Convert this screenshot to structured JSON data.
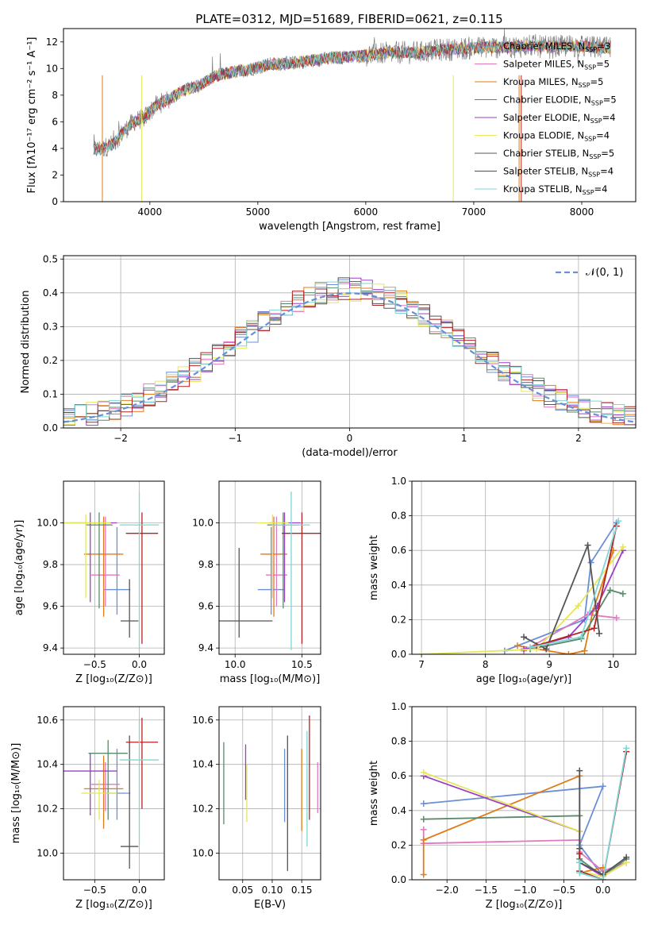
{
  "title": "PLATE=0312, MJD=51689, FIBERID=0621, z=0.115",
  "colors": {
    "Chabrier MILES": "#6a8fd8",
    "Salpeter MILES": "#e377c2",
    "Kroupa MILES": "#e07b1a",
    "Chabrier ELODIE": "#5a8a6a",
    "Salpeter ELODIE": "#9d3ec5",
    "Kroupa ELODIE": "#e6e65a",
    "Chabrier STELIB": "#555555",
    "Salpeter STELIB": "#b22222",
    "Kroupa STELIB": "#7fd6d6"
  },
  "chart_data": [
    {
      "type": "line",
      "id": "spectrum",
      "title": "PLATE=0312, MJD=51689, FIBERID=0621, z=0.115",
      "xlabel": "wavelength [Angstrom, rest frame]",
      "ylabel": "Flux [fλ10⁻¹⁷ erg cm⁻² s⁻¹ A⁻¹]",
      "xlim": [
        3200,
        8500
      ],
      "ylim": [
        0,
        13
      ],
      "xticks": [
        4000,
        5000,
        6000,
        7000,
        8000
      ],
      "yticks": [
        0,
        2,
        4,
        6,
        8,
        10,
        12
      ],
      "legend_position": "upper-right",
      "legend": [
        {
          "name": "Chabrier MILES",
          "label": "Chabrier MILES, N",
          "sub": "SSP",
          "tail": "=3"
        },
        {
          "name": "Salpeter MILES",
          "label": "Salpeter MILES, N",
          "sub": "SSP",
          "tail": "=5"
        },
        {
          "name": "Kroupa MILES",
          "label": "Kroupa MILES, N",
          "sub": "SSP",
          "tail": "=5"
        },
        {
          "name": "Chabrier ELODIE",
          "label": "Chabrier ELODIE, N",
          "sub": "SSP",
          "tail": "=5"
        },
        {
          "name": "Salpeter ELODIE",
          "label": "Salpeter ELODIE, N",
          "sub": "SSP",
          "tail": "=4"
        },
        {
          "name": "Kroupa ELODIE",
          "label": "Kroupa ELODIE, N",
          "sub": "SSP",
          "tail": "=4"
        },
        {
          "name": "Chabrier STELIB",
          "label": "Chabrier STELIB, N",
          "sub": "SSP",
          "tail": "=5"
        },
        {
          "name": "Salpeter STELIB",
          "label": "Salpeter STELIB, N",
          "sub": "SSP",
          "tail": "=4"
        },
        {
          "name": "Kroupa STELIB",
          "label": "Kroupa STELIB, N",
          "sub": "SSP",
          "tail": "=4"
        }
      ],
      "data_profile": {
        "x": [
          3480,
          3560,
          3650,
          3750,
          3850,
          3950,
          4050,
          4150,
          4300,
          4450,
          4600,
          4750,
          4900,
          5100,
          5300,
          5500,
          5700,
          5900,
          6100,
          6300,
          6500,
          6700,
          6900,
          7100,
          7300,
          7500,
          7700,
          7900,
          8100,
          8270
        ],
        "y": [
          3.9,
          4.0,
          4.3,
          5.2,
          6.0,
          6.3,
          7.2,
          7.6,
          8.3,
          8.7,
          9.4,
          9.7,
          9.9,
          10.3,
          10.4,
          10.6,
          10.8,
          10.9,
          11.1,
          11.2,
          11.2,
          11.4,
          11.5,
          11.6,
          11.6,
          11.7,
          11.6,
          11.7,
          11.6,
          11.5
        ]
      }
    },
    {
      "type": "line",
      "id": "residuals",
      "xlabel": "(data-model)/error",
      "ylabel": "Normed distribution",
      "xlim": [
        -2.5,
        2.5
      ],
      "ylim": [
        0,
        0.51
      ],
      "xticks": [
        -2,
        -1,
        0,
        1,
        2
      ],
      "yticks": [
        0.0,
        0.1,
        0.2,
        0.3,
        0.4,
        0.5
      ],
      "grid": true,
      "legend_position": "upper-right",
      "gaussian_label": "𝒩(0, 1)",
      "bin_width": 0.1,
      "bins_from": -2.5,
      "histogram_mean": [
        0.02,
        0.03,
        0.04,
        0.05,
        0.06,
        0.06,
        0.07,
        0.08,
        0.09,
        0.1,
        0.11,
        0.12,
        0.13,
        0.15,
        0.17,
        0.2,
        0.21,
        0.22,
        0.23,
        0.25,
        0.27,
        0.28,
        0.29,
        0.3,
        0.31,
        0.32,
        0.33,
        0.35,
        0.36,
        0.38,
        0.42,
        0.41,
        0.4,
        0.39,
        0.38,
        0.37,
        0.36,
        0.34,
        0.33,
        0.31,
        0.29,
        0.28,
        0.26,
        0.24,
        0.22,
        0.19,
        0.17,
        0.15,
        0.13,
        0.12,
        0.11,
        0.09,
        0.08,
        0.07,
        0.06,
        0.05,
        0.05,
        0.04,
        0.04,
        0.03,
        0.03,
        0.03,
        0.02,
        0.02,
        0.02,
        0.02,
        0.02,
        0.02,
        0.02,
        0.02,
        0.03,
        0.03,
        0.03,
        0.03,
        0.04,
        0.04,
        0.05,
        0.06,
        0.08,
        0.09,
        0.1,
        0.12,
        0.15,
        0.17,
        0.2,
        0.23,
        0.25,
        0.27,
        0.29,
        0.31,
        0.33,
        0.34,
        0.36,
        0.37,
        0.38,
        0.39,
        0.4,
        0.41,
        0.41,
        0.41,
        0.4
      ]
    },
    {
      "type": "scatter",
      "id": "age-vs-Z",
      "xlabel": "Z [log₁₀(Z/Z⊙)]",
      "ylabel": "age  [log₁₀(age/yr)]",
      "xlim": [
        -0.85,
        0.28
      ],
      "ylim": [
        9.37,
        10.2
      ],
      "xticks": [
        -0.5,
        0.0
      ],
      "yticks": [
        9.4,
        9.6,
        9.8,
        10.0
      ],
      "grid": true,
      "points": [
        {
          "model": "Chabrier MILES",
          "x": -0.25,
          "y": 9.68,
          "xerr": 0.15,
          "yerr_lo": 0.12,
          "yerr_hi": 0.3
        },
        {
          "model": "Salpeter MILES",
          "x": -0.38,
          "y": 9.75,
          "xerr": 0.16,
          "yerr_lo": 0.15,
          "yerr_hi": 0.28
        },
        {
          "model": "Kroupa MILES",
          "x": -0.4,
          "y": 9.85,
          "xerr": 0.22,
          "yerr_lo": 0.3,
          "yerr_hi": 0.18
        },
        {
          "model": "Chabrier ELODIE",
          "x": -0.45,
          "y": 9.99,
          "xerr": 0.15,
          "yerr_lo": 0.4,
          "yerr_hi": 0.06
        },
        {
          "model": "Salpeter ELODIE",
          "x": -0.55,
          "y": 10.0,
          "xerr": 0.3,
          "yerr_lo": 0.38,
          "yerr_hi": 0.05
        },
        {
          "model": "Kroupa ELODIE",
          "x": -0.6,
          "y": 10.0,
          "xerr": 0.28,
          "yerr_lo": 0.36,
          "yerr_hi": 0.04
        },
        {
          "model": "Chabrier STELIB",
          "x": -0.11,
          "y": 9.53,
          "xerr": 0.1,
          "yerr_lo": 0.08,
          "yerr_hi": 0.2
        },
        {
          "model": "Salpeter STELIB",
          "x": 0.03,
          "y": 9.95,
          "xerr": 0.18,
          "yerr_lo": 0.53,
          "yerr_hi": 0.1
        },
        {
          "model": "Kroupa STELIB",
          "x": 0.0,
          "y": 9.99,
          "xerr": 0.22,
          "yerr_lo": 0.6,
          "yerr_hi": 0.16
        }
      ]
    },
    {
      "type": "scatter",
      "id": "age-vs-mass",
      "xlabel": "mass [log₁₀(M/M⊙)]",
      "ylabel": "",
      "xlim": [
        9.88,
        10.64
      ],
      "ylim": [
        9.37,
        10.2
      ],
      "xticks": [
        10.0,
        10.5
      ],
      "yticks": [
        9.4,
        9.6,
        9.8,
        10.0
      ],
      "grid": true,
      "points": [
        {
          "model": "Chabrier MILES",
          "x": 10.27,
          "y": 9.68,
          "xerr": 0.1,
          "yerr_lo": 0.12,
          "yerr_hi": 0.3
        },
        {
          "model": "Salpeter MILES",
          "x": 10.31,
          "y": 9.75,
          "xerr": 0.08,
          "yerr_lo": 0.15,
          "yerr_hi": 0.28
        },
        {
          "model": "Kroupa MILES",
          "x": 10.29,
          "y": 9.85,
          "xerr": 0.1,
          "yerr_lo": 0.3,
          "yerr_hi": 0.18
        },
        {
          "model": "Chabrier ELODIE",
          "x": 10.36,
          "y": 9.99,
          "xerr": 0.12,
          "yerr_lo": 0.4,
          "yerr_hi": 0.06
        },
        {
          "model": "Salpeter ELODIE",
          "x": 10.37,
          "y": 10.0,
          "xerr": 0.12,
          "yerr_lo": 0.38,
          "yerr_hi": 0.05
        },
        {
          "model": "Kroupa ELODIE",
          "x": 10.28,
          "y": 10.0,
          "xerr": 0.12,
          "yerr_lo": 0.36,
          "yerr_hi": 0.04
        },
        {
          "model": "Chabrier STELIB",
          "x": 10.03,
          "y": 9.53,
          "xerr": 0.25,
          "yerr_lo": 0.08,
          "yerr_hi": 0.35
        },
        {
          "model": "Salpeter STELIB",
          "x": 10.5,
          "y": 9.95,
          "xerr": 0.15,
          "yerr_lo": 0.53,
          "yerr_hi": 0.1
        },
        {
          "model": "Kroupa STELIB",
          "x": 10.42,
          "y": 9.99,
          "xerr": 0.14,
          "yerr_lo": 0.6,
          "yerr_hi": 0.16
        }
      ]
    },
    {
      "type": "line",
      "id": "mass-weight-vs-age",
      "xlabel": "age  [log₁₀(age/yr)]",
      "ylabel": "mass weight",
      "xlim": [
        6.85,
        10.35
      ],
      "ylim": [
        0,
        1
      ],
      "xticks": [
        7,
        8,
        9,
        10
      ],
      "yticks": [
        0.0,
        0.2,
        0.4,
        0.6,
        0.8,
        1.0
      ],
      "grid": true,
      "series": [
        {
          "name": "Chabrier MILES",
          "x": [
            8.3,
            9.55,
            9.65,
            10.05
          ],
          "y": [
            0.02,
            0.2,
            0.53,
            0.76
          ]
        },
        {
          "name": "Salpeter MILES",
          "x": [
            8.6,
            9.6,
            10.05
          ],
          "y": [
            0.02,
            0.23,
            0.21
          ]
        },
        {
          "name": "Kroupa MILES",
          "x": [
            8.5,
            9.3,
            9.55,
            9.68,
            10.0
          ],
          "y": [
            0.05,
            0.0,
            0.02,
            0.25,
            0.6
          ]
        },
        {
          "name": "Chabrier ELODIE",
          "x": [
            8.7,
            9.5,
            9.95,
            10.15
          ],
          "y": [
            0.03,
            0.09,
            0.37,
            0.35
          ]
        },
        {
          "name": "Salpeter ELODIE",
          "x": [
            8.6,
            9.3,
            9.75,
            10.15
          ],
          "y": [
            0.03,
            0.1,
            0.28,
            0.6
          ]
        },
        {
          "name": "Kroupa ELODIE",
          "x": [
            7.0,
            8.8,
            9.45,
            10.15
          ],
          "y": [
            0.0,
            0.03,
            0.28,
            0.62
          ]
        },
        {
          "name": "Chabrier STELIB",
          "x": [
            8.6,
            8.95,
            9.6,
            9.78
          ],
          "y": [
            0.1,
            0.03,
            0.63,
            0.12
          ]
        },
        {
          "name": "Salpeter STELIB",
          "x": [
            8.8,
            9.7,
            10.05
          ],
          "y": [
            0.05,
            0.15,
            0.74
          ]
        },
        {
          "name": "Kroupa STELIB",
          "x": [
            8.7,
            9.5,
            10.08
          ],
          "y": [
            0.04,
            0.1,
            0.77
          ]
        }
      ]
    },
    {
      "type": "scatter",
      "id": "mass-vs-Z",
      "xlabel": "Z [log₁₀(Z/Z⊙)]",
      "ylabel": "mass [log₁₀(M/M⊙)]",
      "xlim": [
        -0.85,
        0.28
      ],
      "ylim": [
        9.88,
        10.66
      ],
      "xticks": [
        -0.5,
        0.0
      ],
      "yticks": [
        10.0,
        10.2,
        10.4,
        10.6
      ],
      "grid": true,
      "points": [
        {
          "model": "Chabrier MILES",
          "x": -0.25,
          "y": 10.27,
          "xerr": 0.15,
          "yerr_lo": 0.12,
          "yerr_hi": 0.2
        },
        {
          "model": "Salpeter MILES",
          "x": -0.38,
          "y": 10.31,
          "xerr": 0.16,
          "yerr_lo": 0.12,
          "yerr_hi": 0.1
        },
        {
          "model": "Kroupa MILES",
          "x": -0.4,
          "y": 10.29,
          "xerr": 0.22,
          "yerr_lo": 0.18,
          "yerr_hi": 0.15
        },
        {
          "model": "Chabrier ELODIE",
          "x": -0.35,
          "y": 10.45,
          "xerr": 0.22,
          "yerr_lo": 0.3,
          "yerr_hi": 0.06
        },
        {
          "model": "Salpeter ELODIE",
          "x": -0.55,
          "y": 10.37,
          "xerr": 0.3,
          "yerr_lo": 0.2,
          "yerr_hi": 0.08
        },
        {
          "model": "Kroupa ELODIE",
          "x": -0.45,
          "y": 10.27,
          "xerr": 0.2,
          "yerr_lo": 0.12,
          "yerr_hi": 0.06
        },
        {
          "model": "Chabrier STELIB",
          "x": -0.11,
          "y": 10.03,
          "xerr": 0.1,
          "yerr_lo": 0.1,
          "yerr_hi": 0.5
        },
        {
          "model": "Salpeter STELIB",
          "x": 0.03,
          "y": 10.5,
          "xerr": 0.18,
          "yerr_lo": 0.3,
          "yerr_hi": 0.11
        },
        {
          "model": "Kroupa STELIB",
          "x": 0.0,
          "y": 10.42,
          "xerr": 0.22,
          "yerr_lo": 0.38,
          "yerr_hi": 0.18
        }
      ]
    },
    {
      "type": "scatter",
      "id": "mass-vs-EBV",
      "xlabel": "E(B-V)",
      "ylabel": "",
      "xlim": [
        0.01,
        0.182
      ],
      "ylim": [
        9.88,
        10.66
      ],
      "xticks": [
        0.05,
        0.1,
        0.15
      ],
      "yticks": [
        10.0,
        10.2,
        10.4,
        10.6
      ],
      "grid": true,
      "points": [
        {
          "model": "Chabrier MILES",
          "x": 0.121,
          "y": 10.27,
          "yerr_lo": 0.13,
          "yerr_hi": 0.2
        },
        {
          "model": "Salpeter MILES",
          "x": 0.177,
          "y": 10.3,
          "yerr_lo": 0.12,
          "yerr_hi": 0.11
        },
        {
          "model": "Kroupa MILES",
          "x": 0.15,
          "y": 10.29,
          "yerr_lo": 0.19,
          "yerr_hi": 0.18
        },
        {
          "model": "Chabrier ELODIE",
          "x": 0.018,
          "y": 10.32,
          "yerr_lo": 0.19,
          "yerr_hi": 0.18
        },
        {
          "model": "Salpeter ELODIE",
          "x": 0.055,
          "y": 10.36,
          "yerr_lo": 0.12,
          "yerr_hi": 0.13
        },
        {
          "model": "Kroupa ELODIE",
          "x": 0.057,
          "y": 10.26,
          "yerr_lo": 0.12,
          "yerr_hi": 0.14
        },
        {
          "model": "Chabrier STELIB",
          "x": 0.126,
          "y": 10.2,
          "yerr_lo": 0.28,
          "yerr_hi": 0.33
        },
        {
          "model": "Salpeter STELIB",
          "x": 0.163,
          "y": 10.45,
          "yerr_lo": 0.3,
          "yerr_hi": 0.17
        },
        {
          "model": "Kroupa STELIB",
          "x": 0.159,
          "y": 10.33,
          "yerr_lo": 0.3,
          "yerr_hi": 0.22
        }
      ]
    },
    {
      "type": "line",
      "id": "mass-weight-vs-Z",
      "xlabel": "Z [log₁₀(Z/Z⊙)]",
      "ylabel": "mass weight",
      "xlim": [
        -2.45,
        0.42
      ],
      "ylim": [
        0,
        1
      ],
      "xticks": [
        -2.0,
        -1.5,
        -1.0,
        -0.5,
        0.0
      ],
      "yticks": [
        0.0,
        0.2,
        0.4,
        0.6,
        0.8,
        1.0
      ],
      "grid": true,
      "series": [
        {
          "name": "Chabrier MILES",
          "x": [
            -2.3,
            0.0,
            -0.3,
            0.0
          ],
          "y": [
            0.44,
            0.54,
            0.2,
            0.02
          ]
        },
        {
          "name": "Salpeter MILES",
          "x": [
            -2.3,
            -2.3,
            -0.3,
            -0.3,
            0.0,
            0.3
          ],
          "y": [
            0.29,
            0.21,
            0.23,
            0.16,
            0.05,
            0.1
          ]
        },
        {
          "name": "Kroupa MILES",
          "x": [
            -2.3,
            -2.3,
            -0.3,
            -0.3,
            0.0
          ],
          "y": [
            0.03,
            0.23,
            0.6,
            0.04,
            0.07
          ]
        },
        {
          "name": "Chabrier ELODIE",
          "x": [
            -2.3,
            -0.3,
            -0.3,
            0.0,
            0.3
          ],
          "y": [
            0.35,
            0.37,
            0.12,
            0.02,
            0.12
          ]
        },
        {
          "name": "Salpeter ELODIE",
          "x": [
            -2.3,
            -0.3,
            -0.3,
            0.0,
            0.3
          ],
          "y": [
            0.6,
            0.28,
            0.1,
            0.02,
            0.1
          ]
        },
        {
          "name": "Kroupa ELODIE",
          "x": [
            -2.3,
            -0.3,
            -0.3,
            0.0,
            0.3
          ],
          "y": [
            0.62,
            0.28,
            0.05,
            0.02,
            0.1
          ]
        },
        {
          "name": "Chabrier STELIB",
          "x": [
            -0.3,
            -0.3,
            -0.3,
            0.0,
            0.3
          ],
          "y": [
            0.63,
            0.18,
            0.1,
            0.03,
            0.13
          ]
        },
        {
          "name": "Salpeter STELIB",
          "x": [
            -0.3,
            -0.3,
            0.0,
            0.3
          ],
          "y": [
            0.15,
            0.05,
            0.0,
            0.74
          ]
        },
        {
          "name": "Kroupa STELIB",
          "x": [
            -0.3,
            -0.3,
            0.0,
            0.3
          ],
          "y": [
            0.1,
            0.04,
            0.0,
            0.76
          ]
        }
      ]
    }
  ]
}
